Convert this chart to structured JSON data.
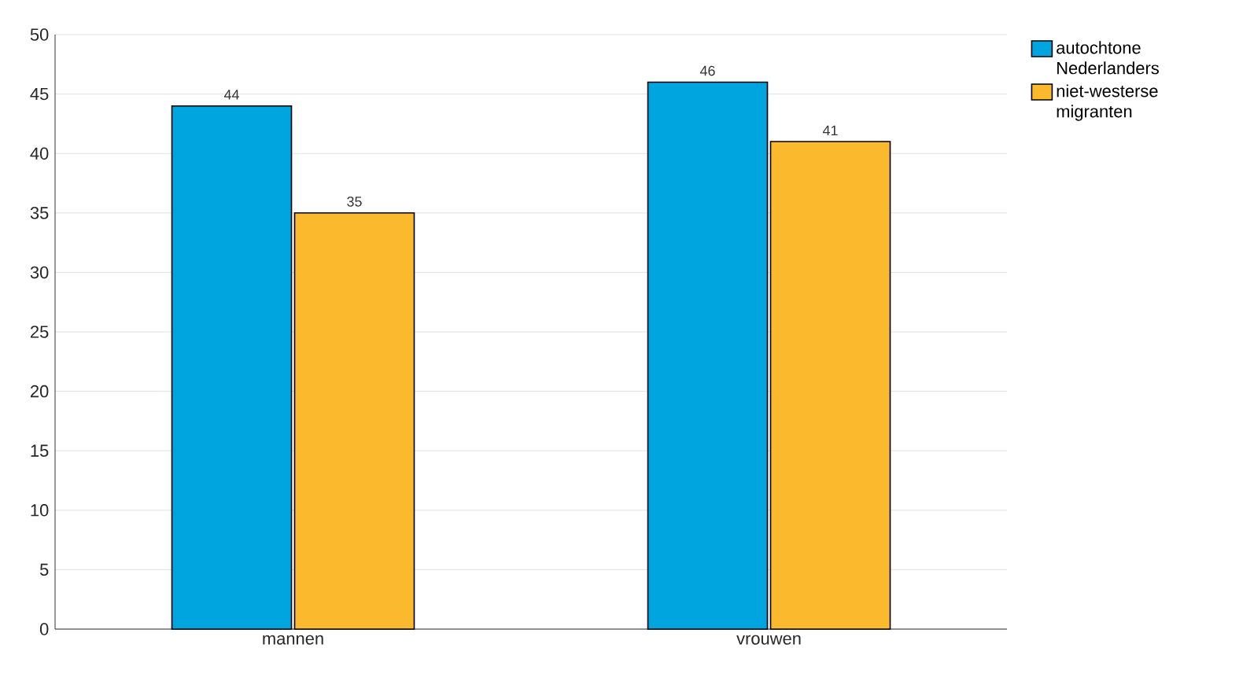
{
  "chart_data": {
    "type": "bar",
    "categories": [
      "mannen",
      "vrouwen"
    ],
    "series": [
      {
        "name": "autochtone Nederlanders",
        "color": "#00a5e0",
        "values": [
          44,
          46
        ]
      },
      {
        "name": "niet-westerse migranten",
        "color": "#fbba2d",
        "values": [
          35,
          41
        ]
      }
    ],
    "ylim": [
      0,
      50
    ],
    "yticks": [
      0,
      5,
      10,
      15,
      20,
      25,
      30,
      35,
      40,
      45,
      50
    ],
    "grid": "y",
    "legend": "top right",
    "data_labels": true
  }
}
